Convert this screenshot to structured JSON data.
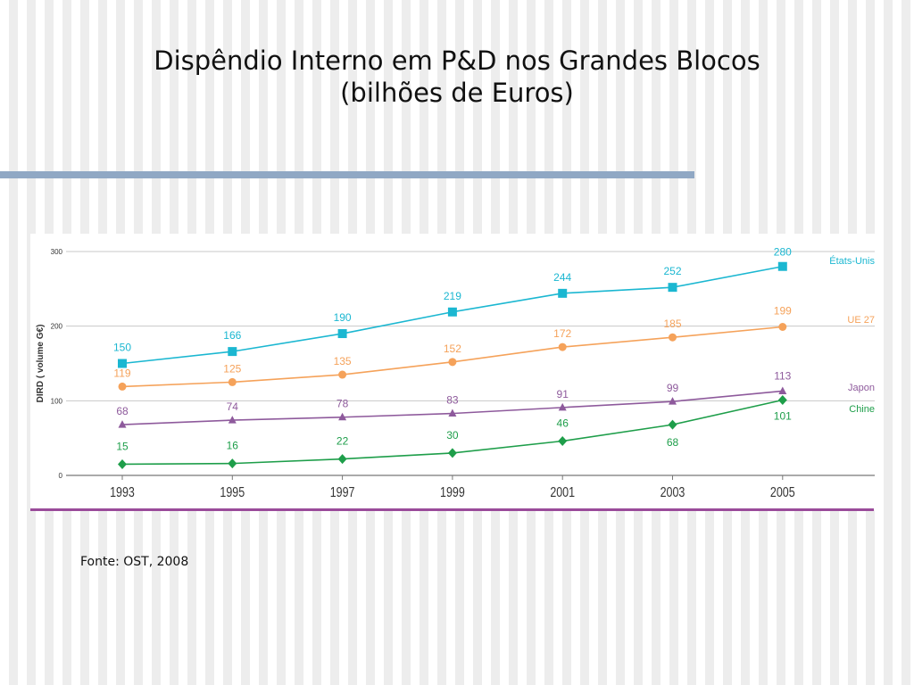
{
  "title_line1": "Dispêndio Interno em P&D nos Grandes Blocos",
  "title_line2": "(bilhões de Euros)",
  "source": "Fonte: OST, 2008",
  "chart_data": {
    "type": "line",
    "ylabel": "DIRD ( volume G€)",
    "ylim": [
      0,
      300
    ],
    "yticks": [
      0,
      100,
      200,
      300
    ],
    "x": [
      "1993",
      "1995",
      "1997",
      "1999",
      "2001",
      "2003",
      "2005"
    ],
    "grid": true,
    "legend_placement": "right",
    "series": [
      {
        "name": "États-Unis",
        "color": "#1bb7d1",
        "marker": "square",
        "values": [
          150,
          166,
          190,
          219,
          244,
          252,
          280
        ]
      },
      {
        "name": "UE 27",
        "color": "#f5a25a",
        "marker": "circle",
        "values": [
          119,
          125,
          135,
          152,
          172,
          185,
          199
        ]
      },
      {
        "name": "Japon",
        "color": "#8e5a9c",
        "marker": "triangle",
        "values": [
          68,
          74,
          78,
          83,
          91,
          99,
          113
        ]
      },
      {
        "name": "Chine",
        "color": "#1e9e4a",
        "marker": "diamond",
        "values": [
          15,
          16,
          22,
          30,
          46,
          68,
          101
        ]
      }
    ]
  }
}
